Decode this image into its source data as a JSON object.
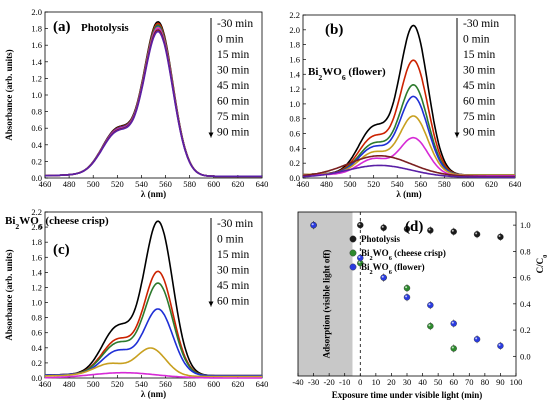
{
  "chart_data": [
    {
      "id": "a",
      "type": "line",
      "panel_label": "(a)",
      "title": "Photolysis",
      "xlabel": "λ (nm)",
      "ylabel": "Absorbance (arb. units)",
      "xlim": [
        460,
        640
      ],
      "ylim": [
        0,
        2.0
      ],
      "xticks": [
        460,
        480,
        500,
        520,
        540,
        560,
        580,
        600,
        620,
        640
      ],
      "yticks": [
        0,
        0.2,
        0.4,
        0.6,
        0.8,
        1.0,
        1.2,
        1.4,
        1.6,
        1.8,
        2.0
      ],
      "tick_labels": [
        "0.0",
        "0.2",
        "0.4",
        "0.6",
        "0.8",
        "1.0",
        "1.2",
        "1.4",
        "1.6",
        "1.8",
        "2.0"
      ],
      "legend": [
        "-30 min",
        "0 min",
        "15 min",
        "30 min",
        "45 min",
        "60 min",
        "75 min",
        "90 min"
      ],
      "series": [
        {
          "color": "#000000",
          "peak": 1.92,
          "shoulder": 0.72,
          "base": 0.02
        },
        {
          "color": "#cc2200",
          "peak": 1.9,
          "shoulder": 0.71,
          "base": 0.02
        },
        {
          "color": "#2d7a2d",
          "peak": 1.88,
          "shoulder": 0.7,
          "base": 0.02
        },
        {
          "color": "#1f2fd6",
          "peak": 1.86,
          "shoulder": 0.7,
          "base": 0.02
        },
        {
          "color": "#c8a020",
          "peak": 1.85,
          "shoulder": 0.69,
          "base": 0.02
        },
        {
          "color": "#d62ad6",
          "peak": 1.84,
          "shoulder": 0.69,
          "base": 0.02
        },
        {
          "color": "#7a2020",
          "peak": 1.82,
          "shoulder": 0.68,
          "base": 0.02
        },
        {
          "color": "#5a1fa6",
          "peak": 1.8,
          "shoulder": 0.67,
          "base": 0.02
        }
      ]
    },
    {
      "id": "b",
      "type": "line",
      "panel_label": "(b)",
      "title": "Bi2WO6 (flower)",
      "xlabel": "λ (nm)",
      "xlim": [
        460,
        640
      ],
      "ylim": [
        0,
        2.2
      ],
      "xticks": [
        460,
        480,
        500,
        520,
        540,
        560,
        580,
        600,
        620,
        640
      ],
      "yticks": [
        0,
        0.2,
        0.4,
        0.6,
        0.8,
        1.0,
        1.2,
        1.4,
        1.6,
        1.8,
        2.0,
        2.2
      ],
      "tick_labels": [
        "0.0",
        "0.2",
        "0.4",
        "0.6",
        "0.8",
        "1.0",
        "1.2",
        "1.4",
        "1.6",
        "1.8",
        "2.0",
        "2.2"
      ],
      "legend": [
        "-30 min",
        "0 min",
        "15 min",
        "30 min",
        "45 min",
        "60 min",
        "75 min",
        "90 min"
      ],
      "series": [
        {
          "color": "#000000",
          "peak": 2.1,
          "shoulder": 0.82,
          "base": 0.04
        },
        {
          "color": "#cc2200",
          "peak": 1.62,
          "shoulder": 0.65,
          "base": 0.04
        },
        {
          "color": "#2d7a2d",
          "peak": 1.28,
          "shoulder": 0.53,
          "base": 0.04
        },
        {
          "color": "#1f2fd6",
          "peak": 1.12,
          "shoulder": 0.47,
          "base": 0.04
        },
        {
          "color": "#c8a020",
          "peak": 0.85,
          "shoulder": 0.38,
          "base": 0.04
        },
        {
          "color": "#d62ad6",
          "peak": 0.55,
          "shoulder": 0.28,
          "base": 0.03
        },
        {
          "color": "#7a2020",
          "peak": 0.28,
          "shoulder": 0.26,
          "base": 0.02,
          "flat": true
        },
        {
          "color": "#5a1fa6",
          "peak": 0.16,
          "shoulder": 0.16,
          "base": 0.01,
          "flat": true
        }
      ]
    },
    {
      "id": "c",
      "type": "line",
      "panel_label": "(c)",
      "title": "Bi2WO6 (cheese crisp)",
      "xlabel": "λ (nm)",
      "ylabel": "Absorbance (arb. units)",
      "xlim": [
        460,
        640
      ],
      "ylim": [
        0,
        2.2
      ],
      "xticks": [
        460,
        480,
        500,
        520,
        540,
        560,
        580,
        600,
        620,
        640
      ],
      "yticks": [
        0,
        0.2,
        0.4,
        0.6,
        0.8,
        1.0,
        1.2,
        1.4,
        1.6,
        1.8,
        2.0,
        2.2
      ],
      "tick_labels": [
        "0.0",
        "0.2",
        "0.4",
        "0.6",
        "0.8",
        "1.0",
        "1.2",
        "1.4",
        "1.6",
        "1.8",
        "2.0",
        "2.2"
      ],
      "legend": [
        "-30 min",
        "0 min",
        "15 min",
        "30 min",
        "45 min",
        "60 min"
      ],
      "series": [
        {
          "color": "#000000",
          "peak": 2.12,
          "shoulder": 0.82,
          "base": 0.03
        },
        {
          "color": "#cc2200",
          "peak": 1.44,
          "shoulder": 0.6,
          "base": 0.03
        },
        {
          "color": "#2d7a2d",
          "peak": 1.28,
          "shoulder": 0.54,
          "base": 0.03
        },
        {
          "color": "#1f2fd6",
          "peak": 0.93,
          "shoulder": 0.41,
          "base": 0.03
        },
        {
          "color": "#c8a020",
          "peak": 0.4,
          "shoulder": 0.2,
          "base": 0.02,
          "peak_x": 548
        },
        {
          "color": "#d62ad6",
          "peak": 0.07,
          "shoulder": 0.07,
          "base": 0.0,
          "flat": true
        }
      ]
    },
    {
      "id": "d",
      "type": "scatter",
      "panel_label": "(d)",
      "xlabel": "Exposure time under visible light (min)",
      "ylabel": "C/C0",
      "xlim": [
        -40,
        100
      ],
      "ylim": [
        -0.15,
        1.1
      ],
      "xticks": [
        -40,
        -30,
        -20,
        -10,
        0,
        10,
        20,
        30,
        40,
        50,
        60,
        70,
        80,
        90,
        100
      ],
      "yticks": [
        0,
        0.2,
        0.4,
        0.6,
        0.8,
        1.0
      ],
      "tick_labels": [
        "0.0",
        "0.2",
        "0.4",
        "0.6",
        "0.8",
        "1.0"
      ],
      "shaded_region": {
        "x": [
          -40,
          -5
        ],
        "label": "Adsorption (visible light off)"
      },
      "series": [
        {
          "name": "Photolysis",
          "color": "#1a1a1a",
          "x": [
            -30,
            0,
            15,
            30,
            45,
            60,
            75,
            90
          ],
          "y": [
            1.0,
            1.0,
            0.98,
            0.97,
            0.96,
            0.95,
            0.93,
            0.91
          ]
        },
        {
          "name": "Bi2WO6 (cheese crisp)",
          "color": "#2d8a2d",
          "x": [
            -30,
            0,
            15,
            30,
            45,
            60
          ],
          "y": [
            1.0,
            0.71,
            0.6,
            0.52,
            0.23,
            0.06
          ]
        },
        {
          "name": "Bi2WO6 (flower)",
          "color": "#2a3be0",
          "x": [
            -30,
            0,
            15,
            30,
            45,
            60,
            75,
            90
          ],
          "y": [
            1.0,
            0.75,
            0.6,
            0.45,
            0.39,
            0.25,
            0.13,
            0.08
          ]
        }
      ]
    }
  ]
}
